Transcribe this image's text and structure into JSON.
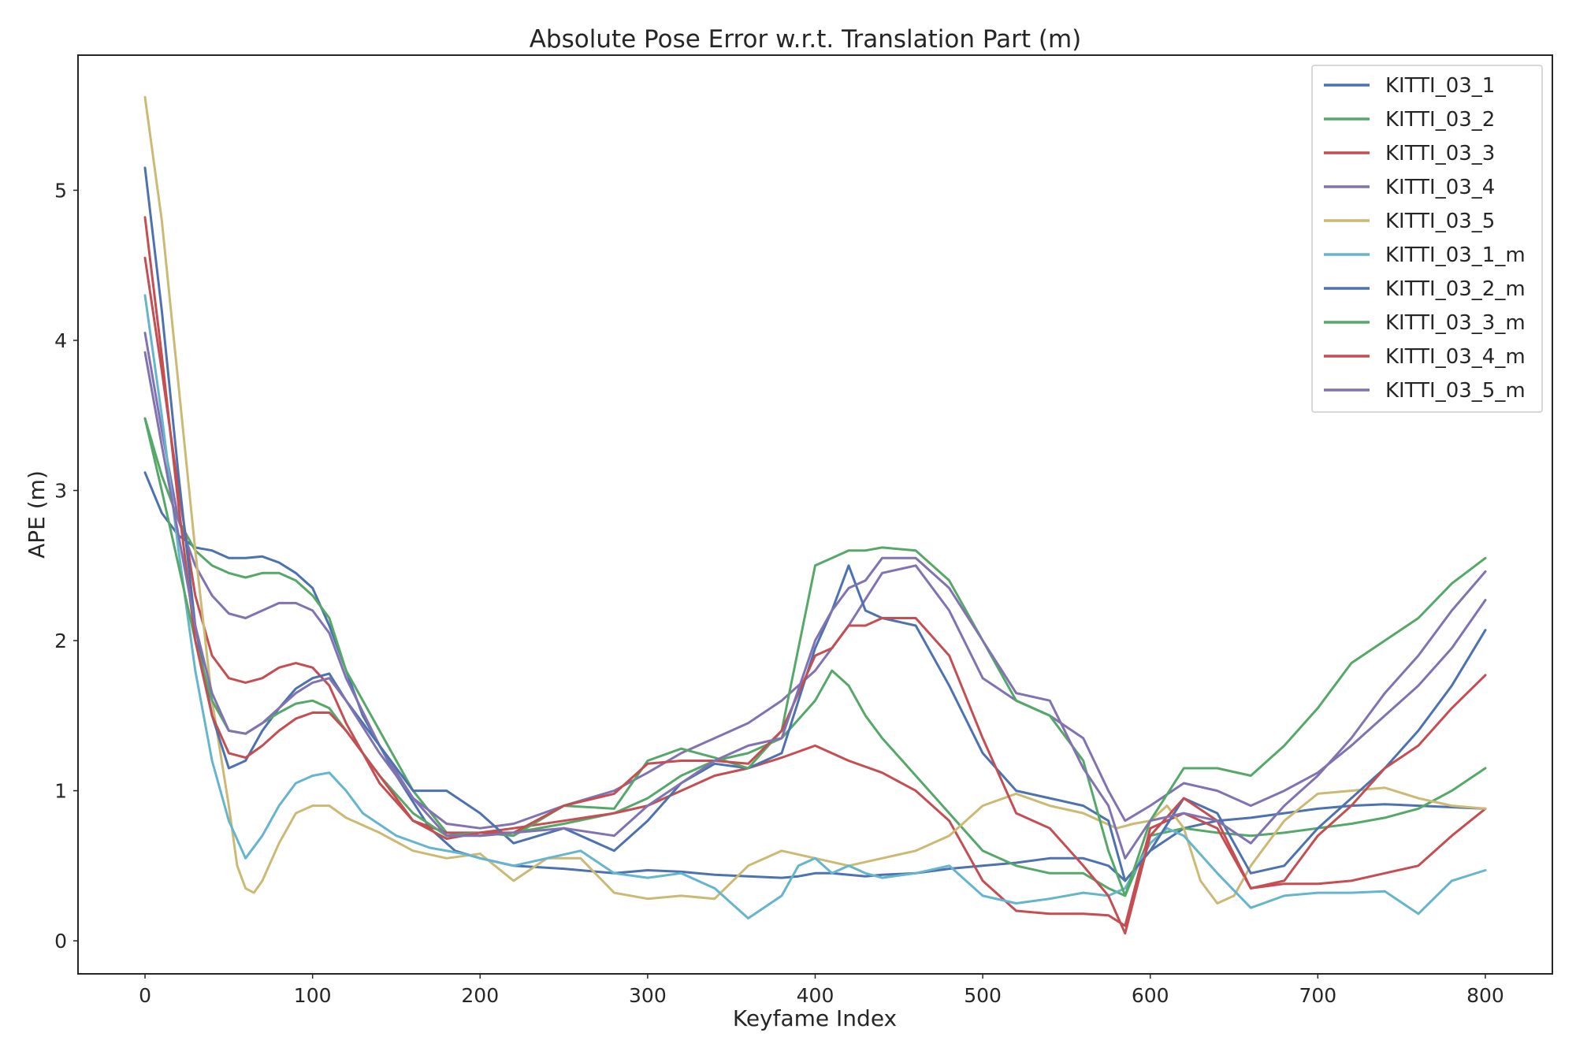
{
  "chart_data": {
    "type": "line",
    "title": "Absolute Pose Error w.r.t. Translation Part (m)",
    "xlabel": "Keyfame Index",
    "ylabel": "APE (m)",
    "xlim": [
      -40,
      840
    ],
    "ylim": [
      -0.22,
      5.9
    ],
    "xticks": [
      0,
      100,
      200,
      300,
      400,
      500,
      600,
      700,
      800
    ],
    "yticks": [
      0,
      1,
      2,
      3,
      4,
      5
    ],
    "grid": false,
    "legend_position": "top-right",
    "series": [
      {
        "name": "KITTI_03_1",
        "color": "#4c72b0",
        "x": [
          0,
          10,
          20,
          30,
          40,
          50,
          60,
          70,
          80,
          90,
          100,
          110,
          120,
          130,
          150,
          170,
          185,
          200,
          220,
          250,
          280,
          300,
          320,
          340,
          360,
          380,
          390,
          400,
          410,
          420,
          430,
          440,
          460,
          480,
          500,
          520,
          540,
          560,
          575,
          585,
          600,
          620,
          640,
          660,
          680,
          700,
          720,
          740,
          760,
          780,
          800
        ],
        "y": [
          3.12,
          2.85,
          2.7,
          2.62,
          2.6,
          2.55,
          2.55,
          2.56,
          2.52,
          2.45,
          2.35,
          2.1,
          1.8,
          1.5,
          1.1,
          0.75,
          0.6,
          0.55,
          0.5,
          0.48,
          0.45,
          0.47,
          0.46,
          0.44,
          0.43,
          0.42,
          0.43,
          0.45,
          0.45,
          0.44,
          0.43,
          0.44,
          0.45,
          0.48,
          0.5,
          0.52,
          0.55,
          0.55,
          0.5,
          0.4,
          0.6,
          0.75,
          0.8,
          0.82,
          0.85,
          0.88,
          0.9,
          0.91,
          0.9,
          0.89,
          0.88
        ]
      },
      {
        "name": "KITTI_03_2",
        "color": "#55a868",
        "x": [
          0,
          10,
          20,
          30,
          40,
          50,
          60,
          70,
          80,
          90,
          100,
          110,
          120,
          140,
          160,
          180,
          200,
          220,
          250,
          280,
          300,
          320,
          340,
          360,
          380,
          400,
          410,
          420,
          430,
          440,
          460,
          480,
          500,
          520,
          540,
          560,
          575,
          585,
          600,
          620,
          640,
          660,
          680,
          700,
          720,
          740,
          760,
          780,
          800
        ],
        "y": [
          3.48,
          3.1,
          2.8,
          2.6,
          2.5,
          2.45,
          2.42,
          2.45,
          2.45,
          2.4,
          2.3,
          2.15,
          1.8,
          1.4,
          1.0,
          0.72,
          0.7,
          0.72,
          0.78,
          0.85,
          0.95,
          1.1,
          1.2,
          1.25,
          1.35,
          1.6,
          1.8,
          1.7,
          1.5,
          1.35,
          1.1,
          0.85,
          0.6,
          0.5,
          0.45,
          0.45,
          0.35,
          0.3,
          0.7,
          0.75,
          0.72,
          0.7,
          0.72,
          0.75,
          0.78,
          0.82,
          0.88,
          1.0,
          1.15
        ]
      },
      {
        "name": "KITTI_03_3",
        "color": "#c44e52",
        "x": [
          0,
          10,
          20,
          30,
          40,
          50,
          60,
          70,
          80,
          90,
          100,
          110,
          120,
          140,
          160,
          180,
          200,
          220,
          250,
          280,
          300,
          320,
          340,
          360,
          380,
          400,
          420,
          440,
          460,
          480,
          500,
          520,
          540,
          560,
          575,
          585,
          600,
          620,
          640,
          660,
          680,
          700,
          720,
          740,
          760,
          780,
          800
        ],
        "y": [
          4.55,
          3.8,
          3.0,
          2.3,
          1.9,
          1.75,
          1.72,
          1.75,
          1.82,
          1.85,
          1.82,
          1.7,
          1.45,
          1.05,
          0.8,
          0.72,
          0.72,
          0.75,
          0.8,
          0.85,
          0.9,
          1.0,
          1.1,
          1.15,
          1.22,
          1.3,
          1.2,
          1.12,
          1.0,
          0.8,
          0.4,
          0.2,
          0.18,
          0.18,
          0.17,
          0.1,
          0.75,
          0.85,
          0.75,
          0.35,
          0.38,
          0.38,
          0.4,
          0.45,
          0.5,
          0.7,
          0.88
        ]
      },
      {
        "name": "KITTI_03_4",
        "color": "#8172b2",
        "x": [
          0,
          10,
          20,
          30,
          40,
          50,
          60,
          70,
          80,
          90,
          100,
          110,
          120,
          140,
          160,
          180,
          200,
          220,
          250,
          280,
          300,
          320,
          340,
          360,
          380,
          400,
          420,
          440,
          460,
          480,
          500,
          520,
          540,
          560,
          575,
          585,
          600,
          620,
          640,
          660,
          680,
          700,
          720,
          740,
          760,
          780,
          800
        ],
        "y": [
          4.05,
          3.4,
          2.8,
          2.5,
          2.3,
          2.18,
          2.15,
          2.2,
          2.25,
          2.25,
          2.2,
          2.05,
          1.75,
          1.3,
          0.95,
          0.78,
          0.75,
          0.78,
          0.9,
          1.0,
          1.12,
          1.25,
          1.35,
          1.45,
          1.6,
          1.8,
          2.1,
          2.45,
          2.5,
          2.2,
          1.75,
          1.6,
          1.5,
          1.35,
          1.0,
          0.8,
          0.9,
          1.05,
          1.0,
          0.9,
          1.0,
          1.12,
          1.3,
          1.5,
          1.7,
          1.95,
          2.27
        ]
      },
      {
        "name": "KITTI_03_5",
        "color": "#ccb974",
        "x": [
          0,
          10,
          20,
          30,
          40,
          50,
          55,
          60,
          65,
          70,
          80,
          90,
          100,
          110,
          120,
          140,
          160,
          180,
          200,
          220,
          240,
          260,
          280,
          300,
          320,
          340,
          360,
          380,
          400,
          420,
          440,
          460,
          480,
          500,
          520,
          540,
          560,
          570,
          580,
          590,
          600,
          610,
          620,
          630,
          640,
          650,
          660,
          680,
          700,
          720,
          740,
          760,
          780,
          800
        ],
        "y": [
          5.62,
          4.8,
          3.7,
          2.6,
          1.6,
          0.9,
          0.5,
          0.35,
          0.32,
          0.4,
          0.65,
          0.85,
          0.9,
          0.9,
          0.82,
          0.72,
          0.6,
          0.55,
          0.58,
          0.4,
          0.55,
          0.55,
          0.32,
          0.28,
          0.3,
          0.28,
          0.5,
          0.6,
          0.55,
          0.5,
          0.55,
          0.6,
          0.7,
          0.9,
          0.98,
          0.9,
          0.85,
          0.8,
          0.75,
          0.78,
          0.8,
          0.9,
          0.75,
          0.4,
          0.25,
          0.3,
          0.5,
          0.8,
          0.98,
          1.0,
          1.02,
          0.95,
          0.9,
          0.88
        ]
      },
      {
        "name": "KITTI_03_1_m",
        "color": "#64b5cd",
        "x": [
          0,
          10,
          20,
          30,
          40,
          50,
          60,
          70,
          80,
          90,
          100,
          110,
          120,
          130,
          150,
          170,
          190,
          200,
          220,
          240,
          260,
          280,
          300,
          320,
          340,
          360,
          380,
          390,
          400,
          410,
          420,
          430,
          440,
          460,
          480,
          500,
          520,
          540,
          560,
          575,
          585,
          600,
          610,
          620,
          640,
          660,
          680,
          700,
          720,
          740,
          760,
          780,
          800
        ],
        "y": [
          4.3,
          3.5,
          2.6,
          1.8,
          1.2,
          0.8,
          0.55,
          0.7,
          0.9,
          1.05,
          1.1,
          1.12,
          1.0,
          0.85,
          0.7,
          0.62,
          0.58,
          0.55,
          0.5,
          0.55,
          0.6,
          0.45,
          0.42,
          0.45,
          0.35,
          0.15,
          0.3,
          0.5,
          0.55,
          0.45,
          0.5,
          0.45,
          0.42,
          0.45,
          0.5,
          0.3,
          0.25,
          0.28,
          0.32,
          0.3,
          0.35,
          0.65,
          0.75,
          0.7,
          0.45,
          0.22,
          0.3,
          0.32,
          0.32,
          0.33,
          0.18,
          0.4,
          0.47
        ]
      },
      {
        "name": "KITTI_03_2_m",
        "color": "#4c72b0",
        "x": [
          0,
          10,
          20,
          30,
          40,
          50,
          60,
          70,
          80,
          90,
          100,
          110,
          120,
          140,
          160,
          180,
          200,
          220,
          250,
          280,
          300,
          320,
          340,
          360,
          380,
          400,
          410,
          420,
          430,
          440,
          460,
          480,
          500,
          520,
          540,
          560,
          575,
          585,
          600,
          620,
          640,
          660,
          680,
          700,
          720,
          740,
          760,
          780,
          800
        ],
        "y": [
          5.15,
          4.2,
          3.1,
          2.1,
          1.5,
          1.15,
          1.2,
          1.4,
          1.55,
          1.68,
          1.75,
          1.78,
          1.6,
          1.3,
          1.0,
          1.0,
          0.85,
          0.65,
          0.75,
          0.6,
          0.8,
          1.05,
          1.18,
          1.15,
          1.25,
          1.95,
          2.2,
          2.5,
          2.2,
          2.15,
          2.1,
          1.7,
          1.25,
          1.0,
          0.95,
          0.9,
          0.8,
          0.4,
          0.6,
          0.95,
          0.85,
          0.45,
          0.5,
          0.75,
          0.95,
          1.15,
          1.4,
          1.7,
          2.07
        ]
      },
      {
        "name": "KITTI_03_3_m",
        "color": "#55a868",
        "x": [
          0,
          10,
          20,
          30,
          40,
          50,
          60,
          70,
          80,
          90,
          100,
          110,
          120,
          140,
          160,
          180,
          200,
          220,
          250,
          280,
          300,
          320,
          340,
          360,
          380,
          400,
          410,
          420,
          430,
          440,
          460,
          480,
          500,
          520,
          540,
          560,
          575,
          585,
          600,
          620,
          640,
          660,
          680,
          700,
          720,
          740,
          760,
          780,
          800
        ],
        "y": [
          3.48,
          3.0,
          2.5,
          2.0,
          1.6,
          1.4,
          1.38,
          1.45,
          1.52,
          1.58,
          1.6,
          1.55,
          1.4,
          1.1,
          0.85,
          0.7,
          0.72,
          0.7,
          0.9,
          0.88,
          1.2,
          1.28,
          1.22,
          1.15,
          1.4,
          2.5,
          2.55,
          2.6,
          2.6,
          2.62,
          2.6,
          2.4,
          2.0,
          1.6,
          1.5,
          1.2,
          0.6,
          0.3,
          0.8,
          1.15,
          1.15,
          1.1,
          1.3,
          1.55,
          1.85,
          2.0,
          2.15,
          2.38,
          2.55
        ]
      },
      {
        "name": "KITTI_03_4_m",
        "color": "#c44e52",
        "x": [
          0,
          10,
          20,
          30,
          40,
          50,
          60,
          70,
          80,
          90,
          100,
          110,
          120,
          140,
          160,
          180,
          200,
          220,
          250,
          280,
          300,
          320,
          340,
          360,
          380,
          400,
          410,
          420,
          430,
          440,
          460,
          480,
          500,
          520,
          540,
          560,
          575,
          585,
          600,
          620,
          640,
          660,
          680,
          700,
          720,
          740,
          760,
          780,
          800
        ],
        "y": [
          4.82,
          3.9,
          2.9,
          2.0,
          1.5,
          1.25,
          1.22,
          1.3,
          1.4,
          1.48,
          1.52,
          1.52,
          1.4,
          1.1,
          0.8,
          0.68,
          0.72,
          0.72,
          0.9,
          0.98,
          1.18,
          1.2,
          1.2,
          1.18,
          1.4,
          1.9,
          1.95,
          2.1,
          2.1,
          2.15,
          2.15,
          1.9,
          1.35,
          0.85,
          0.75,
          0.5,
          0.3,
          0.05,
          0.7,
          0.95,
          0.8,
          0.35,
          0.4,
          0.7,
          0.9,
          1.15,
          1.3,
          1.55,
          1.77
        ]
      },
      {
        "name": "KITTI_03_5_m",
        "color": "#8172b2",
        "x": [
          0,
          10,
          20,
          30,
          40,
          50,
          60,
          70,
          80,
          90,
          100,
          110,
          120,
          140,
          160,
          180,
          200,
          220,
          250,
          280,
          300,
          320,
          340,
          360,
          380,
          400,
          410,
          420,
          430,
          440,
          460,
          480,
          500,
          520,
          540,
          560,
          575,
          585,
          600,
          620,
          640,
          660,
          680,
          700,
          720,
          740,
          760,
          780,
          800
        ],
        "y": [
          3.92,
          3.3,
          2.7,
          2.1,
          1.65,
          1.4,
          1.38,
          1.45,
          1.55,
          1.65,
          1.72,
          1.75,
          1.6,
          1.25,
          0.95,
          0.7,
          0.7,
          0.72,
          0.75,
          0.7,
          0.9,
          1.05,
          1.2,
          1.3,
          1.35,
          2.0,
          2.2,
          2.35,
          2.4,
          2.55,
          2.55,
          2.35,
          2.0,
          1.65,
          1.6,
          1.15,
          0.9,
          0.55,
          0.8,
          0.85,
          0.8,
          0.65,
          0.9,
          1.1,
          1.35,
          1.65,
          1.9,
          2.2,
          2.46
        ]
      }
    ]
  }
}
